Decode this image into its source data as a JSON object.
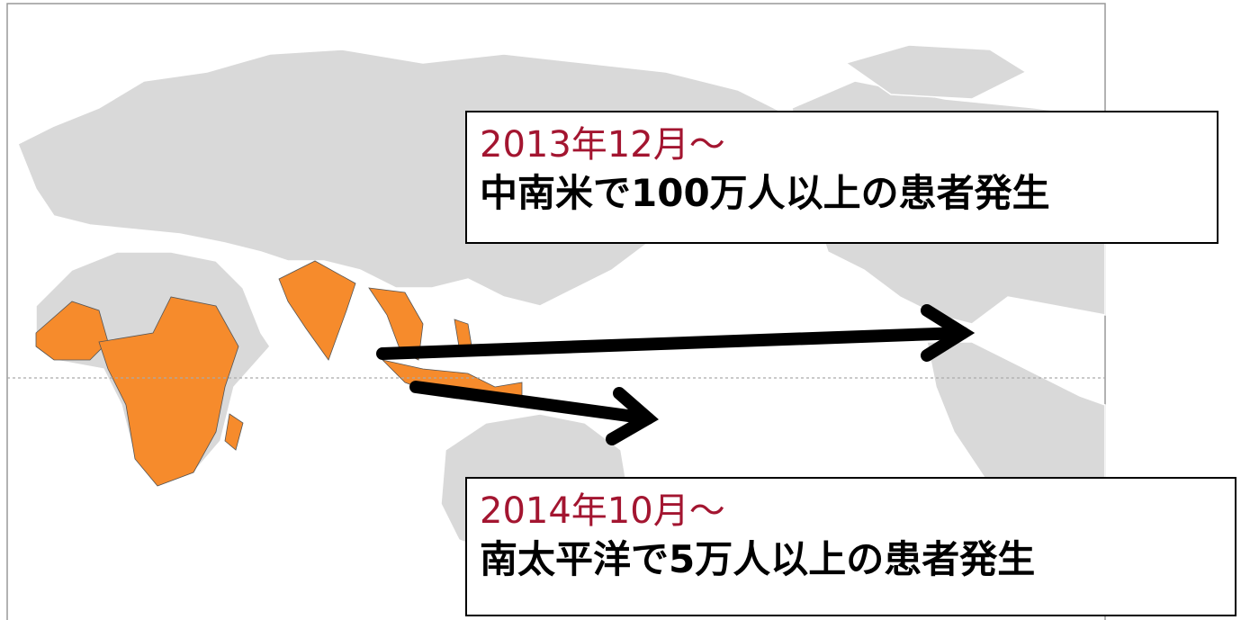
{
  "annotations": [
    {
      "date": "2013年12月～",
      "text": "中南米で100万人以上の患者発生"
    },
    {
      "date": "2014年10月～",
      "text": "南太平洋で5万人以上の患者発生"
    }
  ]
}
